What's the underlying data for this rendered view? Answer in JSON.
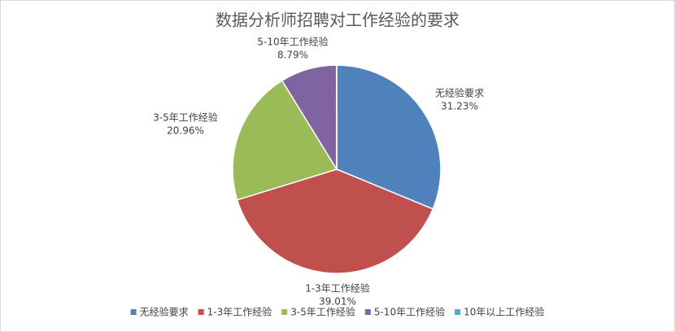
{
  "chart_data": {
    "type": "pie",
    "title": "数据分析师招聘对工作经验的要求",
    "categories": [
      "无经验要求",
      "1-3年工作经验",
      "3-5年工作经验",
      "5-10年工作经验",
      "10年以上工作经验"
    ],
    "values": [
      31.23,
      39.01,
      20.96,
      8.79,
      0.01
    ],
    "value_labels": [
      "31.23%",
      "39.01%",
      "20.96%",
      "8.79%",
      null
    ],
    "colors": [
      "#4f81bd",
      "#c0504d",
      "#9bbb59",
      "#8064a2",
      "#4bacc6"
    ],
    "legend": "bottom"
  }
}
